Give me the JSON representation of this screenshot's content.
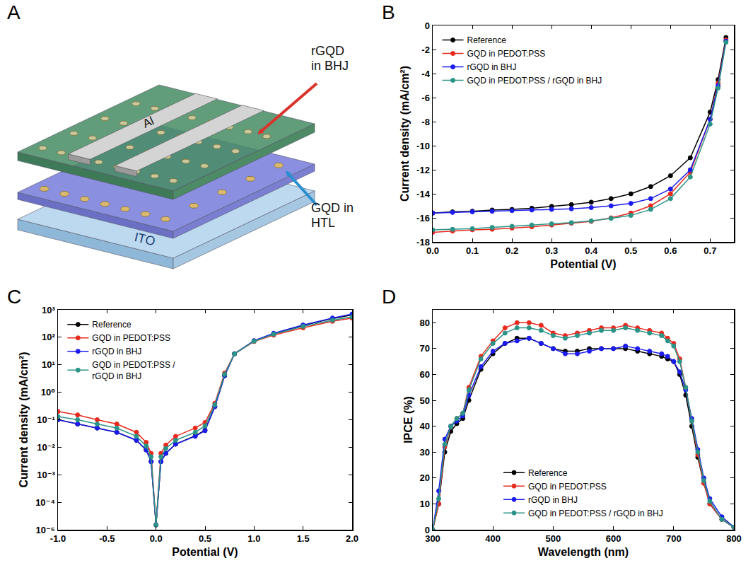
{
  "diagram": {
    "panel": "A",
    "type": "device schematic",
    "electrode": "Al",
    "substrate": "ITO",
    "annotations": [
      {
        "text": "rGQD in BHJ",
        "color": "#d9342b"
      },
      {
        "text": "GQD in HTL",
        "color": "#2a8fd0"
      }
    ]
  },
  "chart_data": [
    {
      "panel": "B",
      "type": "line",
      "xlabel": "Potential (V)",
      "ylabel": "Current density (mA/cm²)",
      "x": [
        0,
        0.05,
        0.1,
        0.15,
        0.2,
        0.25,
        0.3,
        0.35,
        0.4,
        0.45,
        0.5,
        0.55,
        0.6,
        0.65,
        0.7,
        0.72,
        0.74
      ],
      "series": [
        {
          "name": "Reference",
          "color": "#000000",
          "values": [
            -15.6,
            -15.5,
            -15.45,
            -15.35,
            -15.3,
            -15.2,
            -15.05,
            -14.9,
            -14.7,
            -14.4,
            -14.0,
            -13.4,
            -12.5,
            -11.0,
            -7.2,
            -4.5,
            -1.0
          ]
        },
        {
          "name": "GQD in PEDOT:PSS",
          "color": "#e8291c",
          "values": [
            -17.2,
            -17.1,
            -17.0,
            -16.95,
            -16.85,
            -16.75,
            -16.6,
            -16.45,
            -16.3,
            -16.0,
            -15.6,
            -15.0,
            -14.0,
            -12.2,
            -7.8,
            -4.8,
            -1.2
          ]
        },
        {
          "name": "rGQD in BHJ",
          "color": "#1c1cf0",
          "values": [
            -15.6,
            -15.55,
            -15.5,
            -15.45,
            -15.4,
            -15.35,
            -15.3,
            -15.25,
            -15.15,
            -15.0,
            -14.8,
            -14.4,
            -13.6,
            -12.0,
            -7.8,
            -5.0,
            -1.3
          ]
        },
        {
          "name": "GQD in PEDOT:PSS / rGQD in BHJ",
          "color": "#2a9487",
          "values": [
            -17.0,
            -16.95,
            -16.9,
            -16.8,
            -16.7,
            -16.6,
            -16.5,
            -16.4,
            -16.25,
            -16.05,
            -15.8,
            -15.3,
            -14.4,
            -12.6,
            -8.2,
            -5.2,
            -1.4
          ]
        }
      ],
      "xlim": [
        0,
        0.76
      ],
      "xticks": [
        {
          "value": 0,
          "label": "0.0"
        },
        0.1,
        0.2,
        0.3,
        0.4,
        0.5,
        0.6,
        0.7
      ],
      "ylim": [
        -18,
        0
      ],
      "yticks": [
        0,
        -2,
        -4,
        -6,
        -8,
        -10,
        -12,
        -14,
        -16,
        -18
      ],
      "grid": false,
      "legend": "upper left",
      "marker": "circle",
      "line_style": "solid"
    },
    {
      "panel": "C",
      "type": "line",
      "log": "y",
      "xlabel": "Potential (V)",
      "ylabel": "Current density (mA/cm²)",
      "x": [
        -1,
        -0.8,
        -0.6,
        -0.4,
        -0.2,
        -0.1,
        -0.05,
        0,
        0.05,
        0.1,
        0.2,
        0.4,
        0.5,
        0.6,
        0.7,
        0.8,
        1.0,
        1.2,
        1.5,
        1.8,
        2.0
      ],
      "series": [
        {
          "name": "Reference",
          "color": "#000000",
          "values": [
            0.1,
            0.07,
            0.05,
            0.035,
            0.018,
            0.008,
            0.003,
            1.5e-05,
            0.003,
            0.006,
            0.013,
            0.026,
            0.042,
            0.3,
            4,
            25,
            74,
            135,
            270,
            480,
            650
          ]
        },
        {
          "name": "GQD in PEDOT:PSS",
          "color": "#e8291c",
          "values": [
            0.2,
            0.15,
            0.1,
            0.07,
            0.035,
            0.015,
            0.006,
            1.5e-05,
            0.006,
            0.012,
            0.025,
            0.05,
            0.08,
            0.4,
            5,
            25,
            70,
            120,
            220,
            380,
            500
          ]
        },
        {
          "name": "rGQD in BHJ",
          "color": "#1c1cf0",
          "values": [
            0.1,
            0.07,
            0.05,
            0.035,
            0.018,
            0.008,
            0.003,
            1.5e-05,
            0.003,
            0.006,
            0.013,
            0.025,
            0.04,
            0.3,
            4,
            25,
            75,
            140,
            280,
            500,
            700
          ]
        },
        {
          "name": "GQD in PEDOT:PSS / rGQD in BHJ",
          "color": "#2a9487",
          "values": [
            0.13,
            0.1,
            0.07,
            0.05,
            0.025,
            0.011,
            0.0045,
            1.5e-05,
            0.0045,
            0.009,
            0.018,
            0.035,
            0.06,
            0.35,
            4.5,
            25,
            72,
            130,
            250,
            420,
            550
          ]
        }
      ],
      "xlim": [
        -1,
        2
      ],
      "xticks": [
        {
          "value": -1,
          "label": "-1.0"
        },
        -0.5,
        {
          "value": 0,
          "label": "0.0"
        },
        0.5,
        {
          "value": 1,
          "label": "1.0"
        },
        1.5,
        {
          "value": 2,
          "label": "2.0"
        }
      ],
      "ylim": [
        1e-05,
        1000
      ],
      "yticks": [
        {
          "value": 1e-05,
          "label": "10⁻⁵"
        },
        {
          "value": 0.0001,
          "label": "10⁻⁴"
        },
        {
          "value": 0.001,
          "label": "10⁻³"
        },
        {
          "value": 0.01,
          "label": "10⁻²"
        },
        {
          "value": 0.1,
          "label": "10⁻¹"
        },
        {
          "value": 1,
          "label": "10⁰"
        },
        {
          "value": 10,
          "label": "10¹"
        },
        {
          "value": 100,
          "label": "10²"
        },
        {
          "value": 1000,
          "label": "10³"
        }
      ],
      "grid": false,
      "legend": "upper left",
      "marker": "circle",
      "line_style": "solid"
    },
    {
      "panel": "D",
      "type": "line",
      "xlabel": "Wavelength (nm)",
      "ylabel": "IPCE (%)",
      "x": [
        300,
        310,
        320,
        330,
        340,
        350,
        360,
        380,
        400,
        420,
        440,
        460,
        480,
        500,
        520,
        540,
        560,
        580,
        600,
        620,
        640,
        660,
        680,
        690,
        700,
        710,
        720,
        730,
        740,
        750,
        760,
        780,
        800
      ],
      "series": [
        {
          "name": "Reference",
          "color": "#000000",
          "values": [
            0,
            10,
            30,
            38,
            41,
            43,
            50,
            62,
            68,
            72,
            74,
            74,
            72,
            70,
            69,
            69,
            70,
            70,
            70,
            70,
            69,
            68,
            67,
            66,
            65,
            60,
            52,
            40,
            28,
            18,
            10,
            4,
            1
          ]
        },
        {
          "name": "GQD in PEDOT:PSS",
          "color": "#e8291c",
          "values": [
            0,
            10,
            32,
            40,
            43,
            45,
            55,
            67,
            73,
            78,
            80,
            80,
            79,
            76,
            75,
            76,
            77,
            78,
            78,
            79,
            78,
            77,
            76,
            74,
            72,
            66,
            55,
            42,
            29,
            18,
            10,
            4,
            1
          ]
        },
        {
          "name": "rGQD in BHJ",
          "color": "#1c1cf0",
          "values": [
            0,
            15,
            35,
            40,
            42,
            44,
            52,
            63,
            69,
            72,
            73,
            74,
            72,
            70,
            68,
            68,
            69,
            70,
            70,
            71,
            70,
            69,
            68,
            67,
            65,
            61,
            54,
            43,
            31,
            20,
            12,
            5,
            1
          ]
        },
        {
          "name": "GQD in PEDOT:PSS / rGQD in BHJ",
          "color": "#2a9487",
          "values": [
            0,
            12,
            33,
            40,
            43,
            45,
            54,
            66,
            72,
            76,
            78,
            78,
            77,
            75,
            74,
            75,
            76,
            77,
            77,
            78,
            77,
            76,
            75,
            73,
            71,
            65,
            55,
            42,
            30,
            19,
            11,
            4,
            1
          ]
        }
      ],
      "xlim": [
        300,
        800
      ],
      "xticks": [
        300,
        400,
        500,
        600,
        700,
        800
      ],
      "ylim": [
        0,
        85
      ],
      "yticks": [
        0,
        10,
        20,
        30,
        40,
        50,
        60,
        70,
        80
      ],
      "grid": false,
      "legend": "lower center",
      "marker": "circle",
      "line_style": "solid"
    }
  ]
}
